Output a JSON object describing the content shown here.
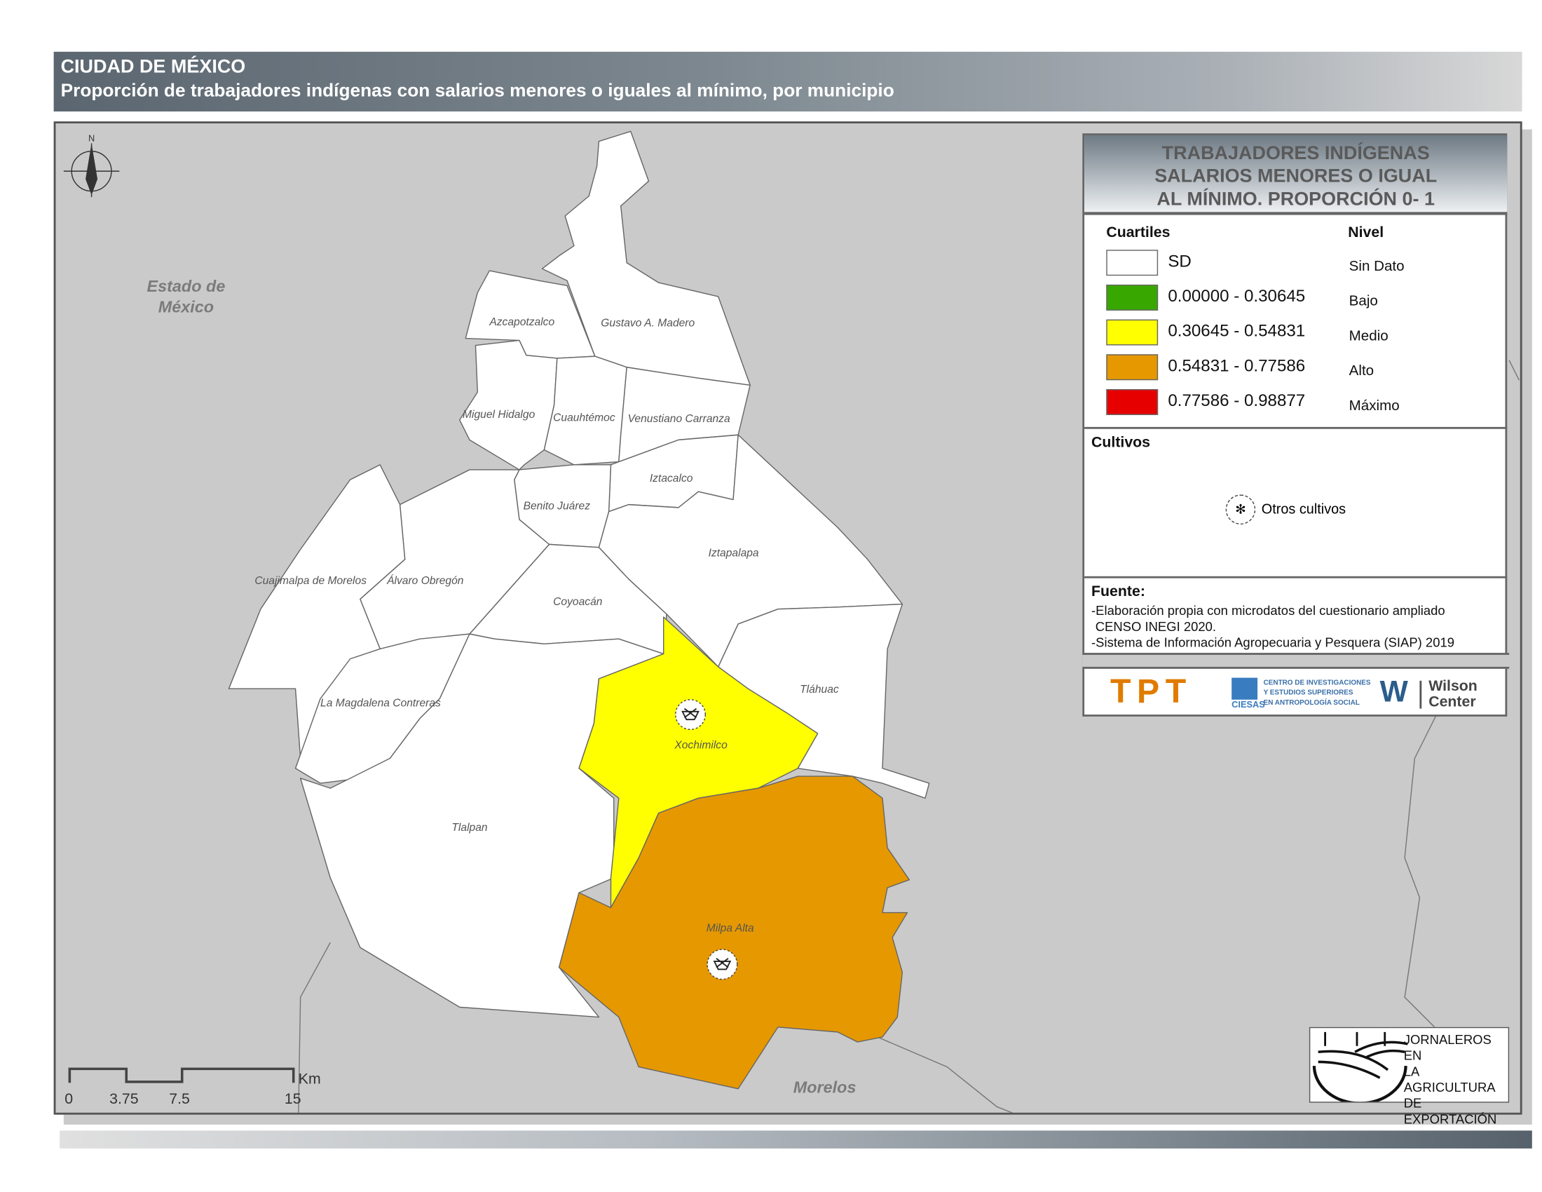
{
  "header": {
    "title": "CIUDAD DE MÉXICO",
    "subtitle": "Proporción de trabajadores indígenas con salarios menores o iguales al mínimo, por municipio"
  },
  "map": {
    "neighbors": {
      "west": "Estado de México",
      "west_line2": "",
      "south": "Morelos",
      "west_l1": "Estado de",
      "west_l2": "México"
    },
    "north_arrow": "N",
    "scale": {
      "ticks": [
        "0",
        "3.75",
        "7.5",
        "15"
      ],
      "unit": "Km"
    },
    "municipalities": [
      {
        "name": "Gustavo A. Madero",
        "level": "SD"
      },
      {
        "name": "Azcapotzalco",
        "level": "SD"
      },
      {
        "name": "Miguel Hidalgo",
        "level": "SD"
      },
      {
        "name": "Cuauhtémoc",
        "level": "SD"
      },
      {
        "name": "Venustiano Carranza",
        "level": "SD"
      },
      {
        "name": "Iztacalco",
        "level": "SD"
      },
      {
        "name": "Benito Juárez",
        "level": "SD"
      },
      {
        "name": "Iztapalapa",
        "level": "SD"
      },
      {
        "name": "Coyoacán",
        "level": "SD"
      },
      {
        "name": "Álvaro Obregón",
        "level": "SD"
      },
      {
        "name": "Cuajimalpa de Morelos",
        "level": "SD"
      },
      {
        "name": "La Magdalena Contreras",
        "level": "SD"
      },
      {
        "name": "Tlalpan",
        "level": "SD"
      },
      {
        "name": "Xochimilco",
        "level": "Medio"
      },
      {
        "name": "Tláhuac",
        "level": "SD"
      },
      {
        "name": "Milpa Alta",
        "level": "Alto"
      }
    ]
  },
  "legend": {
    "title": [
      "TRABAJADORES INDÍGENAS",
      "SALARIOS MENORES O IGUAL",
      "AL MÍNIMO. PROPORCIÓN 0- 1"
    ],
    "col1": "Cuartiles",
    "col2": "Nivel",
    "classes": [
      {
        "range": "SD",
        "level": "Sin Dato",
        "color": "#ffffff"
      },
      {
        "range": "0.00000 - 0.30645",
        "level": "Bajo",
        "color": "#38a800"
      },
      {
        "range": "0.30645 - 0.54831",
        "level": "Medio",
        "color": "#ffff00"
      },
      {
        "range": "0.54831 - 0.77586",
        "level": "Alto",
        "color": "#e69800"
      },
      {
        "range": "0.77586 - 0.98877",
        "level": "Máximo",
        "color": "#e60000"
      }
    ],
    "cultivos_title": "Cultivos",
    "cultivos_item": "Otros cultivos",
    "fuente_title": "Fuente:",
    "fuente_lines": [
      "-Elaboración propia con microdatos del cuestionario ampliado",
      "CENSO INEGI 2020.",
      "-Sistema de Información Agropecuaria y Pesquera (SIAP) 2019"
    ]
  },
  "logos": {
    "tpt": "TPT",
    "ciesas": [
      "CENTRO DE INVESTIGACIONES",
      "Y ESTUDIOS SUPERIORES",
      "EN ANTROPOLOGÍA SOCIAL"
    ],
    "ciesas_short": "CIESAS",
    "wilson": [
      "Wilson",
      "Center"
    ],
    "jornaleros": [
      "JORNALEROS EN",
      "LA AGRICULTURA",
      "DE EXPORTACIÓN"
    ]
  }
}
